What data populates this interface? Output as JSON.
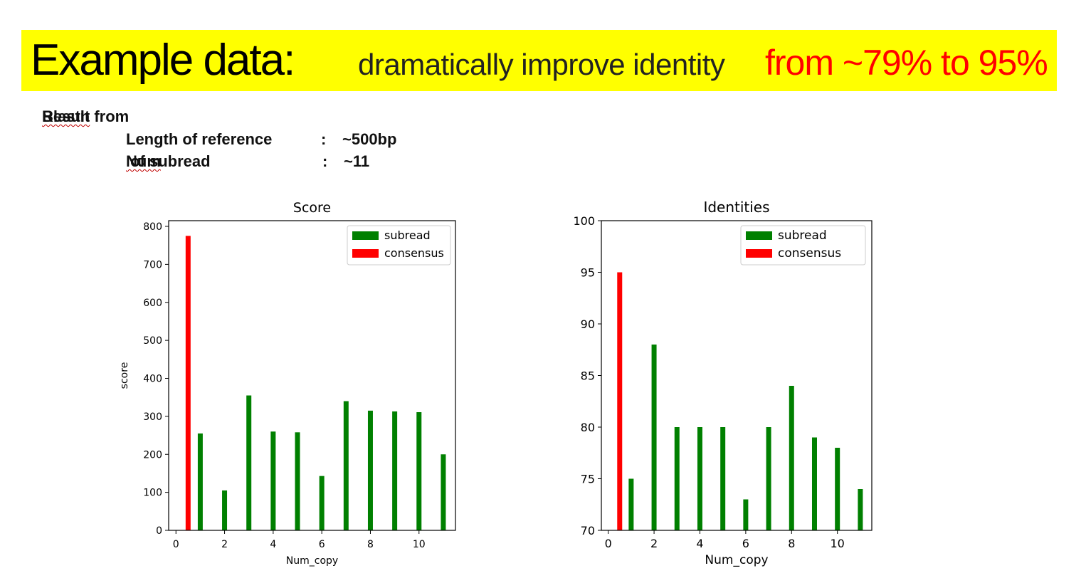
{
  "banner": {
    "main": "Example data",
    "colon": ":",
    "subtitle": "dramatically improve identity",
    "accent": "from ~79%  to 95%"
  },
  "info": {
    "heading_prefix": "Result from ",
    "heading_word": "Blastn",
    "heading_suffix": ":",
    "rows": [
      {
        "label": "Length of reference",
        "sep": ":",
        "value": "~500bp"
      },
      {
        "label_underlined": "Num",
        "label_rest": " of subread",
        "sep": ":",
        "value": "~11"
      }
    ]
  },
  "colors": {
    "subread": "#008000",
    "consensus": "#ff0000",
    "banner": "#ffff00"
  },
  "chart_data": [
    {
      "type": "bar",
      "title": "Score",
      "xlabel": "Num_copy",
      "ylabel": "score",
      "xlim": [
        -0.3,
        11.5
      ],
      "ylim": [
        0,
        815
      ],
      "xticks": [
        0,
        2,
        4,
        6,
        8,
        10
      ],
      "yticks": [
        0,
        100,
        200,
        300,
        400,
        500,
        600,
        700,
        800
      ],
      "legend": "top-right",
      "series": [
        {
          "name": "subread",
          "color": "#008000",
          "x": [
            1,
            2,
            3,
            4,
            5,
            6,
            7,
            8,
            9,
            10,
            11
          ],
          "values": [
            255,
            105,
            355,
            260,
            258,
            143,
            340,
            315,
            313,
            311,
            200
          ]
        },
        {
          "name": "consensus",
          "color": "#ff0000",
          "x": [
            0.5
          ],
          "values": [
            775
          ]
        }
      ]
    },
    {
      "type": "bar",
      "title": "Identities",
      "xlabel": "Num_copy",
      "ylabel": "",
      "xlim": [
        -0.3,
        11.5
      ],
      "ylim": [
        70,
        100
      ],
      "xticks": [
        0,
        2,
        4,
        6,
        8,
        10
      ],
      "yticks": [
        70,
        75,
        80,
        85,
        90,
        95,
        100
      ],
      "legend": "top-right",
      "series": [
        {
          "name": "subread",
          "color": "#008000",
          "x": [
            1,
            2,
            3,
            4,
            5,
            6,
            7,
            8,
            9,
            10,
            11
          ],
          "values": [
            75,
            88,
            80,
            80,
            80,
            73,
            80,
            84,
            79,
            78,
            74
          ]
        },
        {
          "name": "consensus",
          "color": "#ff0000",
          "x": [
            0.5
          ],
          "values": [
            95
          ]
        }
      ]
    }
  ]
}
